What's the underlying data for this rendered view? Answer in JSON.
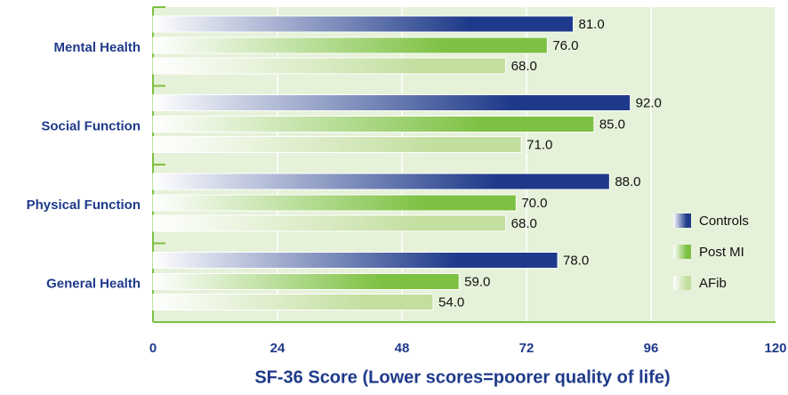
{
  "chart_data": {
    "type": "hbar",
    "xlabel": "SF-36 Score (Lower scores=poorer quality of life)",
    "categories": [
      "Mental Health",
      "Social Function",
      "Physical Function",
      "General Health"
    ],
    "series": [
      {
        "name": "Controls",
        "color": "#1f3a8a",
        "values": [
          81,
          92,
          88,
          78
        ],
        "value_labels": [
          "81.0",
          "92.0",
          "88.0",
          "78.0"
        ]
      },
      {
        "name": "Post MI",
        "color": "#7dc142",
        "values": [
          76,
          85,
          70,
          59
        ],
        "value_labels": [
          "76.0",
          "85.0",
          "70.0",
          "59.0"
        ]
      },
      {
        "name": "AFib",
        "color": "#c3dfa0",
        "values": [
          68,
          71,
          68,
          54
        ],
        "value_labels": [
          "68.0",
          "71.0",
          "68.0",
          "54.0"
        ]
      }
    ],
    "xlim": [
      0,
      120
    ],
    "xticks": [
      0,
      24,
      48,
      72,
      96,
      120
    ],
    "grid": true,
    "legend": "lower right"
  }
}
